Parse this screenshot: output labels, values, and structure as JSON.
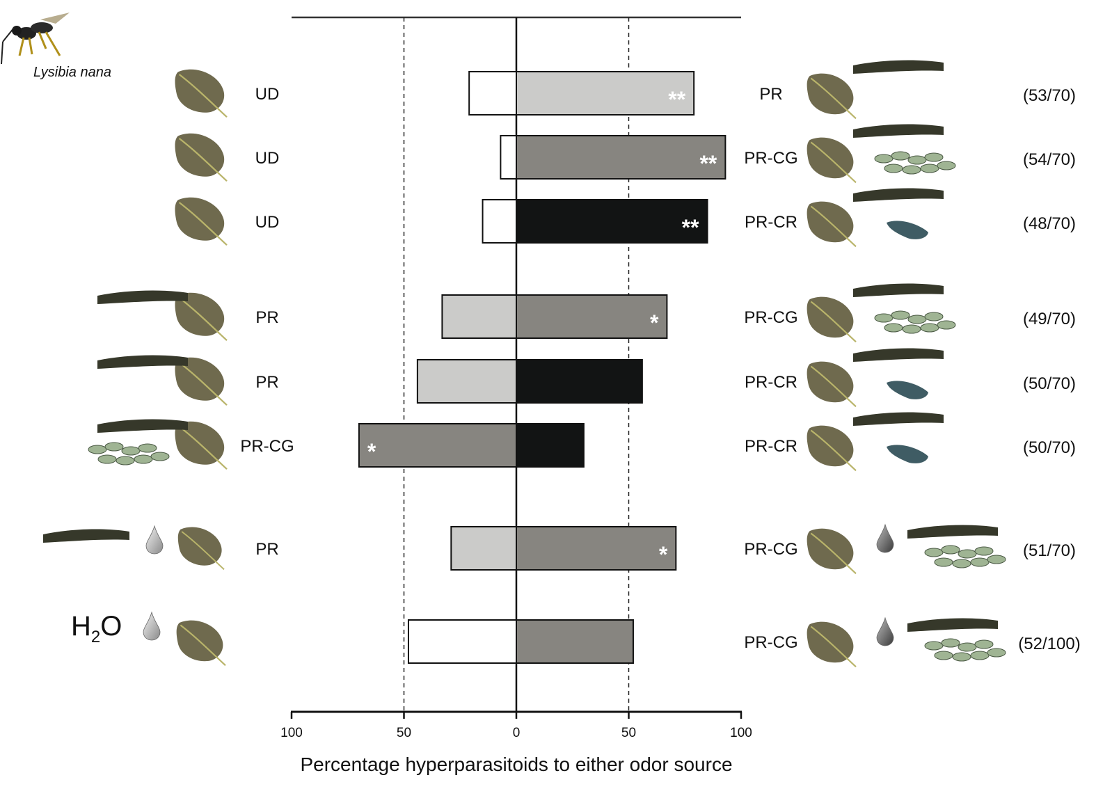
{
  "species_label": "Lysibia nana",
  "h2o_label": {
    "main": "H",
    "sub": "2",
    "end": "O"
  },
  "chart_data": {
    "type": "bar",
    "orientation": "horizontal-diverging",
    "xlabel": "Percentage hyperparasitoids to either odor source",
    "x_ticks": [
      "100",
      "50",
      "0",
      "50",
      "100"
    ],
    "xlim": [
      -100,
      100
    ],
    "reference_lines": [
      -50,
      50
    ],
    "colors": {
      "UD": "#ffffff",
      "PR": "#cbcbc9",
      "PR-CG": "#878580",
      "PR-CR": "#121414"
    },
    "rows": [
      {
        "left": "UD",
        "right": "PR",
        "left_value": 21,
        "right_value": 79,
        "sig": "**",
        "sig_side": "right",
        "n": "(53/70)",
        "group": 1
      },
      {
        "left": "UD",
        "right": "PR-CG",
        "left_value": 7,
        "right_value": 93,
        "sig": "**",
        "sig_side": "right",
        "n": "(54/70)",
        "group": 1
      },
      {
        "left": "UD",
        "right": "PR-CR",
        "left_value": 15,
        "right_value": 85,
        "sig": "**",
        "sig_side": "right",
        "n": "(48/70)",
        "group": 1
      },
      {
        "left": "PR",
        "right": "PR-CG",
        "left_value": 33,
        "right_value": 67,
        "sig": "*",
        "sig_side": "right",
        "n": "(49/70)",
        "group": 2
      },
      {
        "left": "PR",
        "right": "PR-CR",
        "left_value": 44,
        "right_value": 56,
        "sig": "",
        "sig_side": "",
        "n": "(50/70)",
        "group": 2
      },
      {
        "left": "PR-CG",
        "right": "PR-CR",
        "left_value": 70,
        "right_value": 30,
        "sig": "*",
        "sig_side": "left",
        "n": "(50/70)",
        "group": 2
      },
      {
        "left": "PR",
        "right": "PR-CG",
        "left_value": 29,
        "right_value": 71,
        "sig": "*",
        "sig_side": "right",
        "n": "(51/70)",
        "group": 3
      },
      {
        "left": "",
        "right": "PR-CG",
        "left_value": 48,
        "right_value": 52,
        "sig": "",
        "sig_side": "",
        "n": "(52/100)",
        "group": 3,
        "left_is_h2o": true
      }
    ]
  }
}
